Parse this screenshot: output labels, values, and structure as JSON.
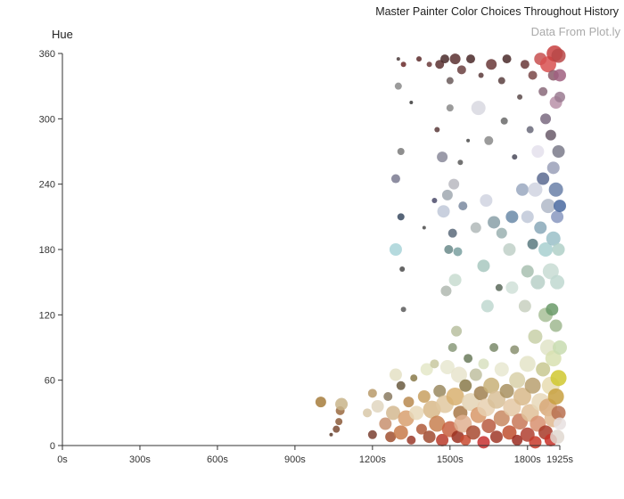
{
  "chart_data": {
    "type": "scatter",
    "title": "Master Painter Color Choices Throughout History",
    "subtitle": "Data From Plot.ly",
    "xlabel": "",
    "ylabel": "Hue",
    "xlim": [
      0,
      1925
    ],
    "ylim": [
      0,
      360
    ],
    "x_ticks": [
      {
        "value": 0,
        "label": "0s"
      },
      {
        "value": 300,
        "label": "300s"
      },
      {
        "value": 600,
        "label": "600s"
      },
      {
        "value": 900,
        "label": "900s"
      },
      {
        "value": 1200,
        "label": "1200s"
      },
      {
        "value": 1500,
        "label": "1500s"
      },
      {
        "value": 1800,
        "label": "1800s"
      },
      {
        "value": 1925,
        "label": "1925s"
      }
    ],
    "y_ticks": [
      0,
      60,
      120,
      180,
      240,
      300,
      360
    ],
    "grid": false,
    "points": [
      {
        "x": 1000,
        "y": 40,
        "r": 6,
        "color": "#a67c3c"
      },
      {
        "x": 1040,
        "y": 10,
        "r": 2,
        "color": "#5a3a2a"
      },
      {
        "x": 1060,
        "y": 15,
        "r": 4,
        "color": "#7a4a32"
      },
      {
        "x": 1070,
        "y": 22,
        "r": 4,
        "color": "#8b5a3a"
      },
      {
        "x": 1075,
        "y": 32,
        "r": 5,
        "color": "#9a6a40"
      },
      {
        "x": 1080,
        "y": 38,
        "r": 7,
        "color": "#c8b48a"
      },
      {
        "x": 1180,
        "y": 30,
        "r": 5,
        "color": "#d8c8a8"
      },
      {
        "x": 1200,
        "y": 10,
        "r": 5,
        "color": "#7a4030"
      },
      {
        "x": 1200,
        "y": 48,
        "r": 5,
        "color": "#b89a6a"
      },
      {
        "x": 1220,
        "y": 36,
        "r": 7,
        "color": "#e0d6c0"
      },
      {
        "x": 1250,
        "y": 20,
        "r": 7,
        "color": "#c89070"
      },
      {
        "x": 1260,
        "y": 45,
        "r": 5,
        "color": "#8a7a60"
      },
      {
        "x": 1270,
        "y": 8,
        "r": 6,
        "color": "#a05030"
      },
      {
        "x": 1280,
        "y": 30,
        "r": 8,
        "color": "#d4b890"
      },
      {
        "x": 1290,
        "y": 65,
        "r": 7,
        "color": "#e4e0c4"
      },
      {
        "x": 1290,
        "y": 180,
        "r": 7,
        "color": "#a8d4d8"
      },
      {
        "x": 1290,
        "y": 245,
        "r": 5,
        "color": "#7a7a90"
      },
      {
        "x": 1300,
        "y": 330,
        "r": 4,
        "color": "#8a8a8a"
      },
      {
        "x": 1300,
        "y": 355,
        "r": 2,
        "color": "#4a3a3a"
      },
      {
        "x": 1310,
        "y": 12,
        "r": 8,
        "color": "#c87a4a"
      },
      {
        "x": 1310,
        "y": 55,
        "r": 5,
        "color": "#6a5a40"
      },
      {
        "x": 1310,
        "y": 270,
        "r": 4,
        "color": "#7a7a7a"
      },
      {
        "x": 1310,
        "y": 210,
        "r": 4,
        "color": "#3a4a60"
      },
      {
        "x": 1315,
        "y": 162,
        "r": 3,
        "color": "#4a4a4a"
      },
      {
        "x": 1320,
        "y": 125,
        "r": 3,
        "color": "#5a5a5a"
      },
      {
        "x": 1320,
        "y": 350,
        "r": 3,
        "color": "#6a2a2a"
      },
      {
        "x": 1330,
        "y": 25,
        "r": 9,
        "color": "#d8a070"
      },
      {
        "x": 1340,
        "y": 40,
        "r": 6,
        "color": "#b88a50"
      },
      {
        "x": 1350,
        "y": 5,
        "r": 5,
        "color": "#9a3a2a"
      },
      {
        "x": 1350,
        "y": 315,
        "r": 2,
        "color": "#3a3a3a"
      },
      {
        "x": 1360,
        "y": 62,
        "r": 4,
        "color": "#8a7a4a"
      },
      {
        "x": 1370,
        "y": 30,
        "r": 8,
        "color": "#e8d8b8"
      },
      {
        "x": 1380,
        "y": 355,
        "r": 3,
        "color": "#5a2a2a"
      },
      {
        "x": 1390,
        "y": 15,
        "r": 6,
        "color": "#b05a3a"
      },
      {
        "x": 1400,
        "y": 45,
        "r": 7,
        "color": "#c8a060"
      },
      {
        "x": 1400,
        "y": 200,
        "r": 2,
        "color": "#4a4a4a"
      },
      {
        "x": 1410,
        "y": 70,
        "r": 7,
        "color": "#e4e8c8"
      },
      {
        "x": 1420,
        "y": 8,
        "r": 7,
        "color": "#a04a30"
      },
      {
        "x": 1420,
        "y": 350,
        "r": 3,
        "color": "#6a3a3a"
      },
      {
        "x": 1430,
        "y": 33,
        "r": 10,
        "color": "#d8b888"
      },
      {
        "x": 1440,
        "y": 75,
        "r": 5,
        "color": "#c8c8a0"
      },
      {
        "x": 1440,
        "y": 225,
        "r": 3,
        "color": "#4a4a6a"
      },
      {
        "x": 1450,
        "y": 20,
        "r": 9,
        "color": "#c88050"
      },
      {
        "x": 1450,
        "y": 290,
        "r": 3,
        "color": "#5a3a3a"
      },
      {
        "x": 1460,
        "y": 50,
        "r": 7,
        "color": "#9a8a60"
      },
      {
        "x": 1460,
        "y": 350,
        "r": 5,
        "color": "#5a3030"
      },
      {
        "x": 1470,
        "y": 5,
        "r": 7,
        "color": "#b83a2a"
      },
      {
        "x": 1470,
        "y": 265,
        "r": 6,
        "color": "#8a8a9a"
      },
      {
        "x": 1475,
        "y": 215,
        "r": 7,
        "color": "#c0c8d8"
      },
      {
        "x": 1480,
        "y": 38,
        "r": 10,
        "color": "#e0c8a0"
      },
      {
        "x": 1480,
        "y": 355,
        "r": 5,
        "color": "#4a2a2a"
      },
      {
        "x": 1485,
        "y": 142,
        "r": 6,
        "color": "#b0b8b0"
      },
      {
        "x": 1490,
        "y": 72,
        "r": 8,
        "color": "#e8e8d0"
      },
      {
        "x": 1490,
        "y": 230,
        "r": 6,
        "color": "#a0a8b0"
      },
      {
        "x": 1495,
        "y": 180,
        "r": 5,
        "color": "#6a8a8a"
      },
      {
        "x": 1500,
        "y": 15,
        "r": 9,
        "color": "#c86040"
      },
      {
        "x": 1500,
        "y": 310,
        "r": 4,
        "color": "#8a8a8a"
      },
      {
        "x": 1500,
        "y": 335,
        "r": 4,
        "color": "#6a5a5a"
      },
      {
        "x": 1510,
        "y": 90,
        "r": 5,
        "color": "#8a9a7a"
      },
      {
        "x": 1510,
        "y": 195,
        "r": 5,
        "color": "#5a6a7a"
      },
      {
        "x": 1515,
        "y": 240,
        "r": 6,
        "color": "#b8b8c0"
      },
      {
        "x": 1520,
        "y": 45,
        "r": 10,
        "color": "#d8b070"
      },
      {
        "x": 1520,
        "y": 152,
        "r": 7,
        "color": "#c8dcd0"
      },
      {
        "x": 1520,
        "y": 355,
        "r": 6,
        "color": "#5a3030"
      },
      {
        "x": 1525,
        "y": 105,
        "r": 6,
        "color": "#b8c0a0"
      },
      {
        "x": 1530,
        "y": 8,
        "r": 7,
        "color": "#9a3020"
      },
      {
        "x": 1530,
        "y": 178,
        "r": 5,
        "color": "#7aa0a0"
      },
      {
        "x": 1535,
        "y": 65,
        "r": 9,
        "color": "#e8e4cc"
      },
      {
        "x": 1540,
        "y": 30,
        "r": 8,
        "color": "#a87848"
      },
      {
        "x": 1540,
        "y": 260,
        "r": 3,
        "color": "#5a5a5a"
      },
      {
        "x": 1545,
        "y": 345,
        "r": 5,
        "color": "#6a4040"
      },
      {
        "x": 1550,
        "y": 20,
        "r": 10,
        "color": "#e0b090"
      },
      {
        "x": 1550,
        "y": 220,
        "r": 5,
        "color": "#7a8aa0"
      },
      {
        "x": 1560,
        "y": 5,
        "r": 6,
        "color": "#c84a30"
      },
      {
        "x": 1560,
        "y": 55,
        "r": 7,
        "color": "#8a7a4a"
      },
      {
        "x": 1570,
        "y": 80,
        "r": 5,
        "color": "#6a7a5a"
      },
      {
        "x": 1570,
        "y": 280,
        "r": 2,
        "color": "#4a4a4a"
      },
      {
        "x": 1580,
        "y": 40,
        "r": 10,
        "color": "#e4d4b4"
      },
      {
        "x": 1580,
        "y": 355,
        "r": 5,
        "color": "#4a2828"
      },
      {
        "x": 1590,
        "y": 12,
        "r": 8,
        "color": "#a84a30"
      },
      {
        "x": 1600,
        "y": 65,
        "r": 7,
        "color": "#c0c0a0"
      },
      {
        "x": 1600,
        "y": 200,
        "r": 6,
        "color": "#b0b8b8"
      },
      {
        "x": 1610,
        "y": 28,
        "r": 9,
        "color": "#d89868"
      },
      {
        "x": 1610,
        "y": 310,
        "r": 8,
        "color": "#d8d8e0"
      },
      {
        "x": 1620,
        "y": 48,
        "r": 8,
        "color": "#a08050"
      },
      {
        "x": 1620,
        "y": 340,
        "r": 3,
        "color": "#5a3a3a"
      },
      {
        "x": 1630,
        "y": 3,
        "r": 7,
        "color": "#c83030"
      },
      {
        "x": 1630,
        "y": 75,
        "r": 6,
        "color": "#d8e0c0"
      },
      {
        "x": 1630,
        "y": 165,
        "r": 7,
        "color": "#a8c8c0"
      },
      {
        "x": 1640,
        "y": 35,
        "r": 10,
        "color": "#e8d0b0"
      },
      {
        "x": 1640,
        "y": 225,
        "r": 7,
        "color": "#d0d4e0"
      },
      {
        "x": 1645,
        "y": 128,
        "r": 7,
        "color": "#c0d8d0"
      },
      {
        "x": 1650,
        "y": 18,
        "r": 8,
        "color": "#b85a40"
      },
      {
        "x": 1650,
        "y": 280,
        "r": 5,
        "color": "#8a8a8a"
      },
      {
        "x": 1660,
        "y": 55,
        "r": 9,
        "color": "#c8b078"
      },
      {
        "x": 1660,
        "y": 350,
        "r": 6,
        "color": "#6a3838"
      },
      {
        "x": 1670,
        "y": 90,
        "r": 5,
        "color": "#7a8a6a"
      },
      {
        "x": 1670,
        "y": 205,
        "r": 7,
        "color": "#8aa0a8"
      },
      {
        "x": 1680,
        "y": 8,
        "r": 7,
        "color": "#a03828"
      },
      {
        "x": 1680,
        "y": 42,
        "r": 10,
        "color": "#d8c098"
      },
      {
        "x": 1690,
        "y": 145,
        "r": 4,
        "color": "#5a6a5a"
      },
      {
        "x": 1700,
        "y": 25,
        "r": 9,
        "color": "#c88860"
      },
      {
        "x": 1700,
        "y": 70,
        "r": 8,
        "color": "#e8e8d0"
      },
      {
        "x": 1700,
        "y": 195,
        "r": 6,
        "color": "#9ab0b0"
      },
      {
        "x": 1700,
        "y": 335,
        "r": 4,
        "color": "#5a4040"
      },
      {
        "x": 1710,
        "y": 298,
        "r": 4,
        "color": "#6a6a6a"
      },
      {
        "x": 1720,
        "y": 50,
        "r": 8,
        "color": "#a89060"
      },
      {
        "x": 1720,
        "y": 355,
        "r": 5,
        "color": "#4a2a2a"
      },
      {
        "x": 1730,
        "y": 12,
        "r": 8,
        "color": "#c05030"
      },
      {
        "x": 1730,
        "y": 180,
        "r": 7,
        "color": "#c0d0c8"
      },
      {
        "x": 1740,
        "y": 35,
        "r": 10,
        "color": "#e4c8a4"
      },
      {
        "x": 1740,
        "y": 145,
        "r": 7,
        "color": "#d0e0d8"
      },
      {
        "x": 1740,
        "y": 210,
        "r": 7,
        "color": "#6a8aa8"
      },
      {
        "x": 1750,
        "y": 88,
        "r": 5,
        "color": "#8a9070"
      },
      {
        "x": 1750,
        "y": 265,
        "r": 3,
        "color": "#4a4a5a"
      },
      {
        "x": 1760,
        "y": 5,
        "r": 6,
        "color": "#9a2a20"
      },
      {
        "x": 1760,
        "y": 60,
        "r": 9,
        "color": "#d8d0a8"
      },
      {
        "x": 1770,
        "y": 22,
        "r": 9,
        "color": "#c87858"
      },
      {
        "x": 1770,
        "y": 320,
        "r": 3,
        "color": "#5a4a4a"
      },
      {
        "x": 1780,
        "y": 45,
        "r": 10,
        "color": "#d8b88a"
      },
      {
        "x": 1780,
        "y": 235,
        "r": 7,
        "color": "#9aa8c0"
      },
      {
        "x": 1790,
        "y": 128,
        "r": 7,
        "color": "#c8d0c0"
      },
      {
        "x": 1790,
        "y": 350,
        "r": 5,
        "color": "#6a3838"
      },
      {
        "x": 1800,
        "y": 10,
        "r": 8,
        "color": "#b04030"
      },
      {
        "x": 1800,
        "y": 75,
        "r": 9,
        "color": "#e4e4c8"
      },
      {
        "x": 1800,
        "y": 160,
        "r": 7,
        "color": "#a8c0b0"
      },
      {
        "x": 1800,
        "y": 210,
        "r": 7,
        "color": "#c0c8d8"
      },
      {
        "x": 1810,
        "y": 30,
        "r": 10,
        "color": "#e0c098"
      },
      {
        "x": 1810,
        "y": 290,
        "r": 4,
        "color": "#6a6a7a"
      },
      {
        "x": 1820,
        "y": 55,
        "r": 9,
        "color": "#b8a070"
      },
      {
        "x": 1820,
        "y": 185,
        "r": 6,
        "color": "#5a7a80"
      },
      {
        "x": 1820,
        "y": 340,
        "r": 5,
        "color": "#7a4848"
      },
      {
        "x": 1830,
        "y": 3,
        "r": 7,
        "color": "#c83a2a"
      },
      {
        "x": 1830,
        "y": 100,
        "r": 8,
        "color": "#c8d0a8"
      },
      {
        "x": 1830,
        "y": 235,
        "r": 8,
        "color": "#d0d4e0"
      },
      {
        "x": 1840,
        "y": 20,
        "r": 9,
        "color": "#d89070"
      },
      {
        "x": 1840,
        "y": 150,
        "r": 8,
        "color": "#b8d0c8"
      },
      {
        "x": 1840,
        "y": 270,
        "r": 7,
        "color": "#e4e0ec"
      },
      {
        "x": 1850,
        "y": 40,
        "r": 10,
        "color": "#e8d8b8"
      },
      {
        "x": 1850,
        "y": 200,
        "r": 7,
        "color": "#88a8b8"
      },
      {
        "x": 1850,
        "y": 355,
        "r": 7,
        "color": "#c85050"
      },
      {
        "x": 1860,
        "y": 70,
        "r": 8,
        "color": "#c8c890"
      },
      {
        "x": 1860,
        "y": 245,
        "r": 7,
        "color": "#5a6a90"
      },
      {
        "x": 1860,
        "y": 325,
        "r": 5,
        "color": "#8a6a7a"
      },
      {
        "x": 1870,
        "y": 12,
        "r": 8,
        "color": "#a83a28"
      },
      {
        "x": 1870,
        "y": 120,
        "r": 8,
        "color": "#a8c098"
      },
      {
        "x": 1870,
        "y": 180,
        "r": 8,
        "color": "#a8d0d0"
      },
      {
        "x": 1870,
        "y": 300,
        "r": 6,
        "color": "#7a6a80"
      },
      {
        "x": 1880,
        "y": 35,
        "r": 10,
        "color": "#d8a878"
      },
      {
        "x": 1880,
        "y": 90,
        "r": 9,
        "color": "#e0e4c8"
      },
      {
        "x": 1880,
        "y": 220,
        "r": 8,
        "color": "#b0b8c8"
      },
      {
        "x": 1880,
        "y": 350,
        "r": 9,
        "color": "#d85050"
      },
      {
        "x": 1890,
        "y": 5,
        "r": 7,
        "color": "#c83028"
      },
      {
        "x": 1890,
        "y": 55,
        "r": 10,
        "color": "#e8dcb0"
      },
      {
        "x": 1890,
        "y": 160,
        "r": 9,
        "color": "#c8dcd4"
      },
      {
        "x": 1890,
        "y": 285,
        "r": 6,
        "color": "#6a5a6a"
      },
      {
        "x": 1895,
        "y": 125,
        "r": 7,
        "color": "#6a9a68"
      },
      {
        "x": 1900,
        "y": 25,
        "r": 10,
        "color": "#e0b890"
      },
      {
        "x": 1900,
        "y": 80,
        "r": 9,
        "color": "#d8e0b0"
      },
      {
        "x": 1900,
        "y": 190,
        "r": 8,
        "color": "#9ac0c8"
      },
      {
        "x": 1900,
        "y": 255,
        "r": 7,
        "color": "#9aa0b8"
      },
      {
        "x": 1900,
        "y": 340,
        "r": 6,
        "color": "#8a5a6a"
      },
      {
        "x": 1905,
        "y": 360,
        "r": 9,
        "color": "#c84040"
      },
      {
        "x": 1910,
        "y": 45,
        "r": 9,
        "color": "#c8a040"
      },
      {
        "x": 1910,
        "y": 110,
        "r": 7,
        "color": "#a0b890"
      },
      {
        "x": 1910,
        "y": 235,
        "r": 8,
        "color": "#6a80a8"
      },
      {
        "x": 1910,
        "y": 315,
        "r": 7,
        "color": "#b890a8"
      },
      {
        "x": 1915,
        "y": 8,
        "r": 8,
        "color": "#e0d8d0"
      },
      {
        "x": 1915,
        "y": 150,
        "r": 8,
        "color": "#c0d8d0"
      },
      {
        "x": 1915,
        "y": 210,
        "r": 7,
        "color": "#8898c0"
      },
      {
        "x": 1920,
        "y": 62,
        "r": 9,
        "color": "#d0c830"
      },
      {
        "x": 1920,
        "y": 30,
        "r": 8,
        "color": "#b87050"
      },
      {
        "x": 1920,
        "y": 180,
        "r": 7,
        "color": "#b0d0c8"
      },
      {
        "x": 1920,
        "y": 270,
        "r": 7,
        "color": "#7a7a8a"
      },
      {
        "x": 1920,
        "y": 358,
        "r": 8,
        "color": "#b84848"
      },
      {
        "x": 1925,
        "y": 20,
        "r": 7,
        "color": "#e8e0e0"
      },
      {
        "x": 1925,
        "y": 90,
        "r": 8,
        "color": "#c8dcb0"
      },
      {
        "x": 1925,
        "y": 220,
        "r": 7,
        "color": "#4a6aa0"
      },
      {
        "x": 1925,
        "y": 320,
        "r": 6,
        "color": "#9a7a90"
      },
      {
        "x": 1925,
        "y": 340,
        "r": 7,
        "color": "#a06080"
      }
    ]
  }
}
